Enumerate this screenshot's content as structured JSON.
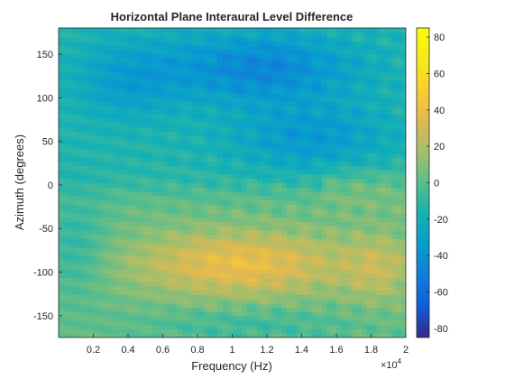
{
  "chart_data": {
    "type": "heatmap",
    "title": "Horizontal Plane Interaural Level Difference",
    "xlabel": "Frequency (Hz)",
    "ylabel": "Azimuth (degrees)",
    "xlim": [
      0,
      2
    ],
    "ylim": [
      -175,
      180
    ],
    "clim": [
      -85,
      85
    ],
    "x_exponent_label": "×10",
    "x_exponent_power": "4",
    "x_ticks": [
      0.2,
      0.4,
      0.6,
      0.8,
      1,
      1.2,
      1.4,
      1.6,
      1.8,
      2
    ],
    "x_tick_labels": [
      "0.2",
      "0.4",
      "0.6",
      "0.8",
      "1",
      "1.2",
      "1.4",
      "1.6",
      "1.8",
      "2"
    ],
    "y_ticks": [
      150,
      100,
      50,
      0,
      -50,
      -100,
      -150
    ],
    "y_tick_labels": [
      "150",
      "100",
      "50",
      "0",
      "-50",
      "-100",
      "-150"
    ],
    "colorbar_ticks": [
      80,
      60,
      40,
      20,
      0,
      -20,
      -40,
      -60,
      -80
    ],
    "colorbar_tick_labels": [
      "80",
      "60",
      "40",
      "20",
      "0",
      "-20",
      "-40",
      "-60",
      "-80"
    ],
    "colormap": "parula",
    "grid": false,
    "regions": [
      {
        "azimuth_range": [
          90,
          180
        ],
        "frequency_range": [
          0.5,
          1.8
        ],
        "ild_db": -40
      },
      {
        "azimuth_range": [
          10,
          90
        ],
        "frequency_range": [
          0.8,
          2
        ],
        "ild_db": -25
      },
      {
        "azimuth_range": [
          -40,
          10
        ],
        "frequency_range": [
          0,
          2
        ],
        "ild_db": 5
      },
      {
        "azimuth_range": [
          -130,
          -50
        ],
        "frequency_range": [
          0.5,
          1.8
        ],
        "ild_db": 40
      },
      {
        "azimuth_range": [
          -130,
          -50
        ],
        "frequency_range": [
          1.8,
          2
        ],
        "ild_db": 30
      },
      {
        "azimuth_range": [
          -175,
          -130
        ],
        "frequency_range": [
          0,
          2
        ],
        "ild_db": 10
      }
    ]
  },
  "colors": {
    "background": "#ffffff",
    "axis": "#262626"
  }
}
